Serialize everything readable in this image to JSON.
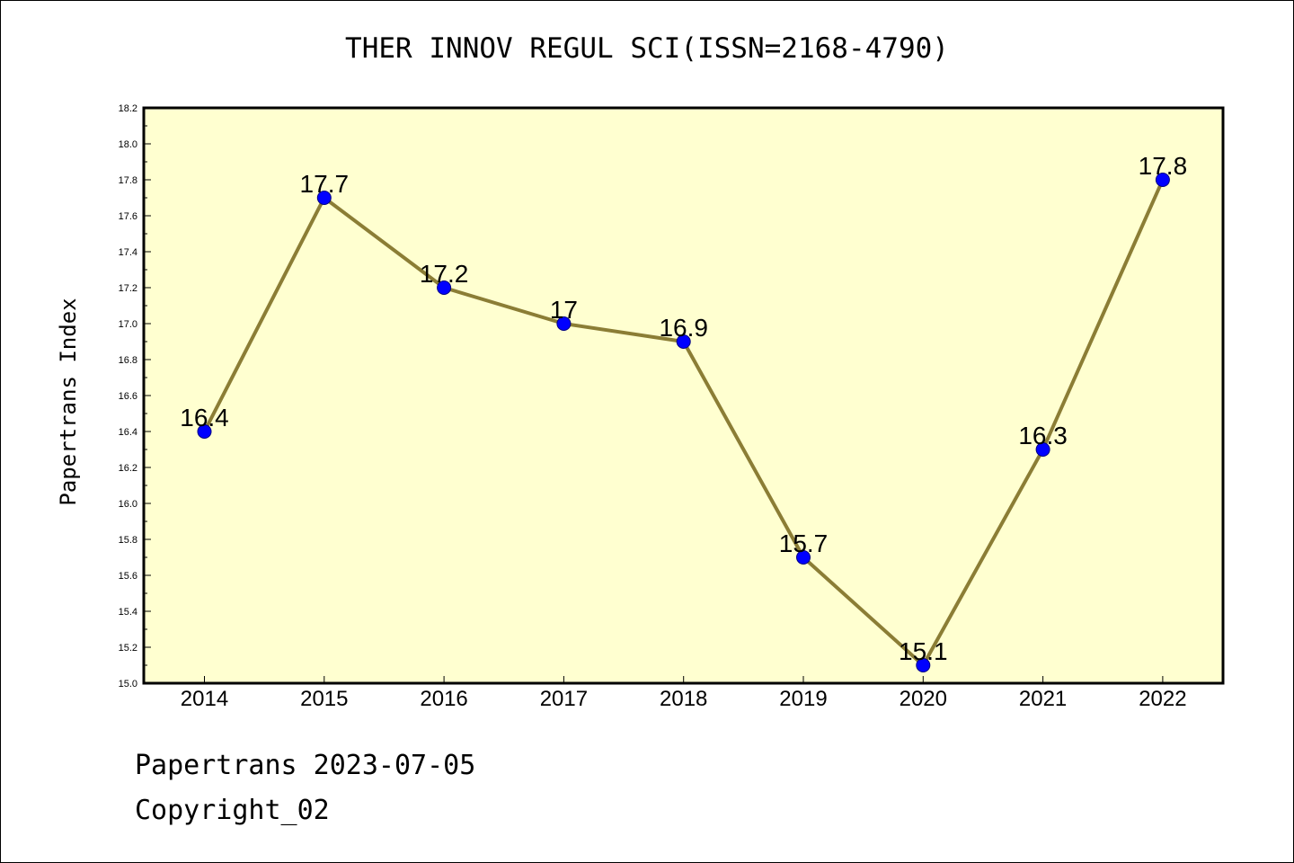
{
  "chart_data": {
    "type": "line",
    "title": "THER INNOV REGUL SCI(ISSN=2168-4790)",
    "ylabel": "Papertrans Index",
    "xlabel": "",
    "categories": [
      "2014",
      "2015",
      "2016",
      "2017",
      "2018",
      "2019",
      "2020",
      "2021",
      "2022"
    ],
    "series": [
      {
        "values": [
          16.4,
          17.7,
          17.2,
          17.0,
          16.9,
          15.7,
          15.1,
          16.3,
          17.8
        ]
      }
    ],
    "data_labels": [
      "16.4",
      "17.7",
      "17.2",
      "17",
      "16.9",
      "15.7",
      "15.1",
      "16.3",
      "17.8"
    ],
    "ylim": [
      15.0,
      18.2
    ],
    "yticks": [
      "15.0",
      "15.2",
      "15.4",
      "15.6",
      "15.8",
      "16.0",
      "16.2",
      "16.4",
      "16.6",
      "16.8",
      "17.0",
      "17.2",
      "17.4",
      "17.6",
      "17.8",
      "18.0",
      "18.2"
    ],
    "grid": false,
    "colors": {
      "plot_bg": "#ffffd0",
      "line": "#8b7d35",
      "marker": "#0000ff",
      "marker_edge": "#000080"
    }
  },
  "footer": {
    "line1": "Papertrans 2023-07-05",
    "line2": "Copyright_02"
  }
}
